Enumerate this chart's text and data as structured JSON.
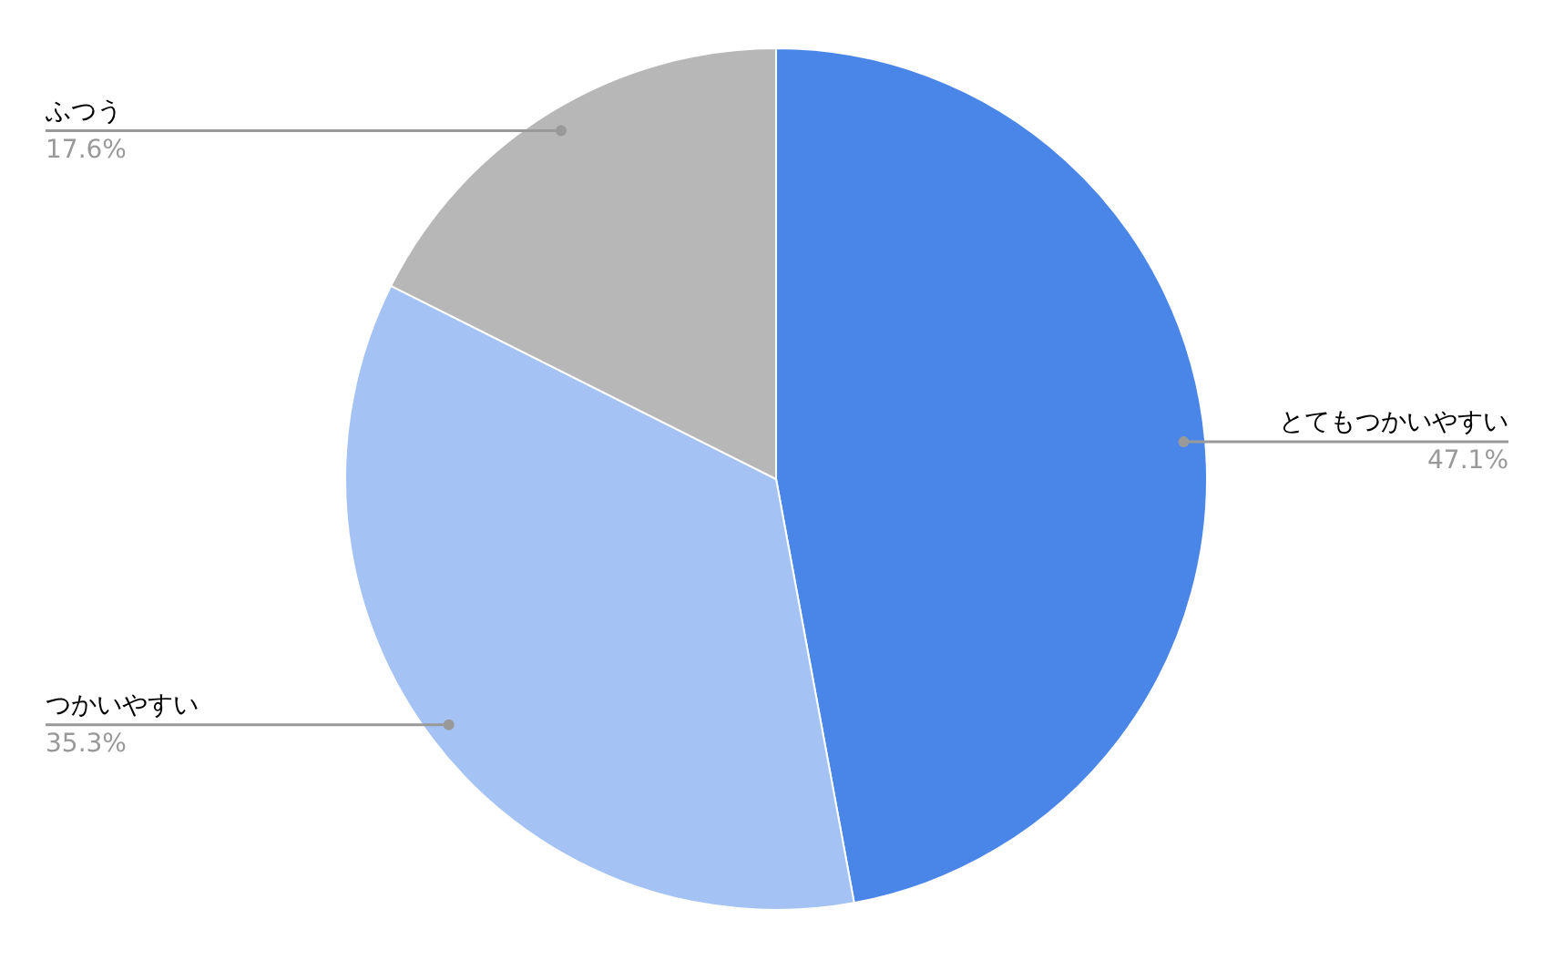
{
  "chart_data": {
    "type": "pie",
    "categories": [
      "とてもつかいやすい",
      "つかいやすい",
      "ふつう"
    ],
    "values": [
      47.1,
      35.3,
      17.6
    ],
    "colors": [
      "#4a86e8",
      "#a4c2f4",
      "#b7b7b7"
    ],
    "value_labels": [
      "47.1%",
      "35.3%",
      "17.6%"
    ],
    "legend": false
  }
}
